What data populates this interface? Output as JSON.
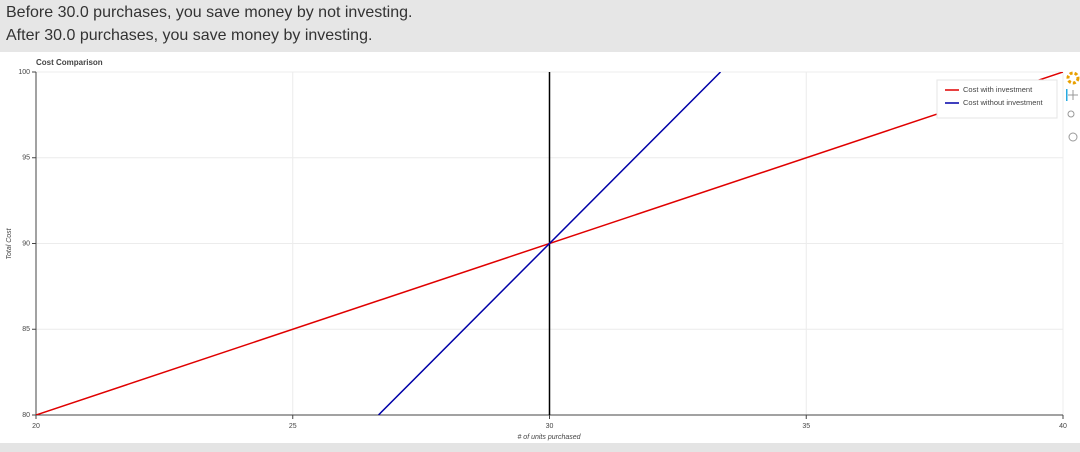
{
  "header": {
    "lines": [
      "Before 30.0 purchases, you save money by not investing.",
      "After 30.0 purchases, you save money by investing."
    ]
  },
  "chart_data": {
    "type": "line",
    "title": "Cost Comparison",
    "x_label": "# of units purchased",
    "y_label": "Total Cost",
    "series": [
      {
        "name": "Cost with investment",
        "color": "#e00000",
        "x": [
          20,
          40
        ],
        "values": [
          80,
          100
        ]
      },
      {
        "name": "Cost without investment",
        "color": "#0000a8",
        "x": [
          26.67,
          33.33
        ],
        "values": [
          80,
          100
        ]
      }
    ],
    "vline": 30,
    "vline_color": "#000000",
    "xlim": [
      20,
      40
    ],
    "xticks": [
      20,
      25,
      30,
      35,
      40
    ],
    "ylim": [
      80,
      100
    ],
    "yticks": [
      80,
      85,
      90,
      95,
      100
    ],
    "grid": true,
    "legend": "top-right"
  }
}
